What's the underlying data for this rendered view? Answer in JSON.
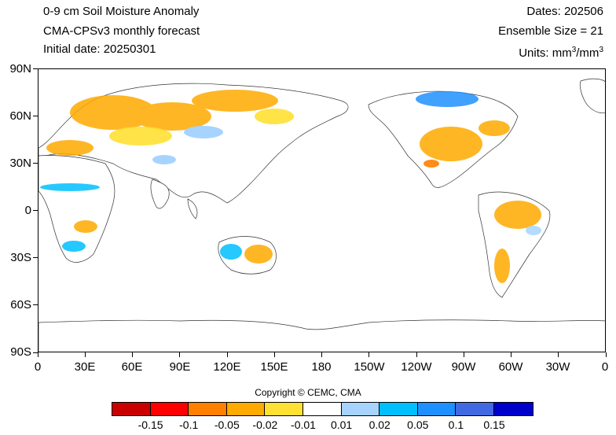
{
  "header": {
    "title": "0-9 cm Soil Moisture Anomaly",
    "model": "CMA-CPSv3 monthly forecast",
    "initial_date": "Initial date: 20250301",
    "dates": "Dates: 202506",
    "ensemble": "Ensemble Size = 21",
    "units_prefix": "Units: mm",
    "units_sup1": "3",
    "units_mid": "/mm",
    "units_sup2": "3"
  },
  "axes": {
    "y_ticks": [
      "90N",
      "60N",
      "30N",
      "0",
      "30S",
      "60S",
      "90S"
    ],
    "x_ticks": [
      "0",
      "30E",
      "60E",
      "90E",
      "120E",
      "150E",
      "180",
      "150W",
      "120W",
      "90W",
      "60W",
      "30W",
      "0"
    ]
  },
  "copyright": "Copyright © CEMC, CMA",
  "colorbar": {
    "colors": [
      "#c90000",
      "#ff0000",
      "#ff7f00",
      "#ffaa00",
      "#ffe033",
      "#ffffff",
      "#a6d4ff",
      "#00bfff",
      "#1e90ff",
      "#4169e1",
      "#0000cd"
    ],
    "labels": [
      "-0.15",
      "-0.1",
      "-0.05",
      "-0.02",
      "-0.01",
      "0.01",
      "0.02",
      "0.05",
      "0.1",
      "0.15"
    ]
  }
}
